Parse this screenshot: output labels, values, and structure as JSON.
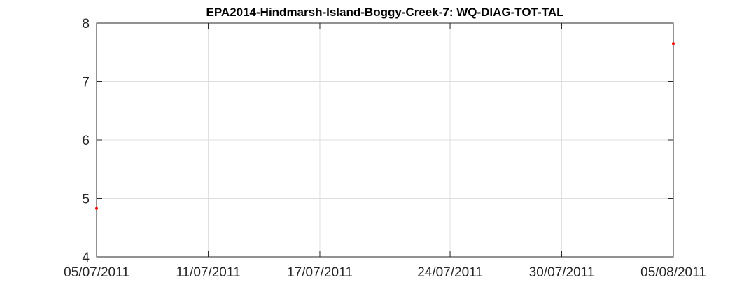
{
  "chart_data": {
    "type": "scatter",
    "title": "EPA2014-Hindmarsh-Island-Boggy-Creek-7: WQ-DIAG-TOT-TAL",
    "xlabel": "",
    "ylabel": "",
    "xlim": [
      "2011-07-05",
      "2011-08-05"
    ],
    "ylim": [
      4,
      8
    ],
    "x_ticks": [
      "2011-07-05",
      "2011-07-11",
      "2011-07-17",
      "2011-07-24",
      "2011-07-30",
      "2011-08-05"
    ],
    "x_tick_labels": [
      "05/07/2011",
      "11/07/2011",
      "17/07/2011",
      "24/07/2011",
      "30/07/2011",
      "05/08/2011"
    ],
    "y_ticks": [
      4,
      5,
      6,
      7,
      8
    ],
    "y_tick_labels": [
      "4",
      "5",
      "6",
      "7",
      "8"
    ],
    "grid": true,
    "series": [
      {
        "color": "#ff0000",
        "points": [
          {
            "x": "2011-07-05",
            "y": 4.83
          },
          {
            "x": "2011-08-05",
            "y": 7.65
          }
        ]
      }
    ]
  }
}
